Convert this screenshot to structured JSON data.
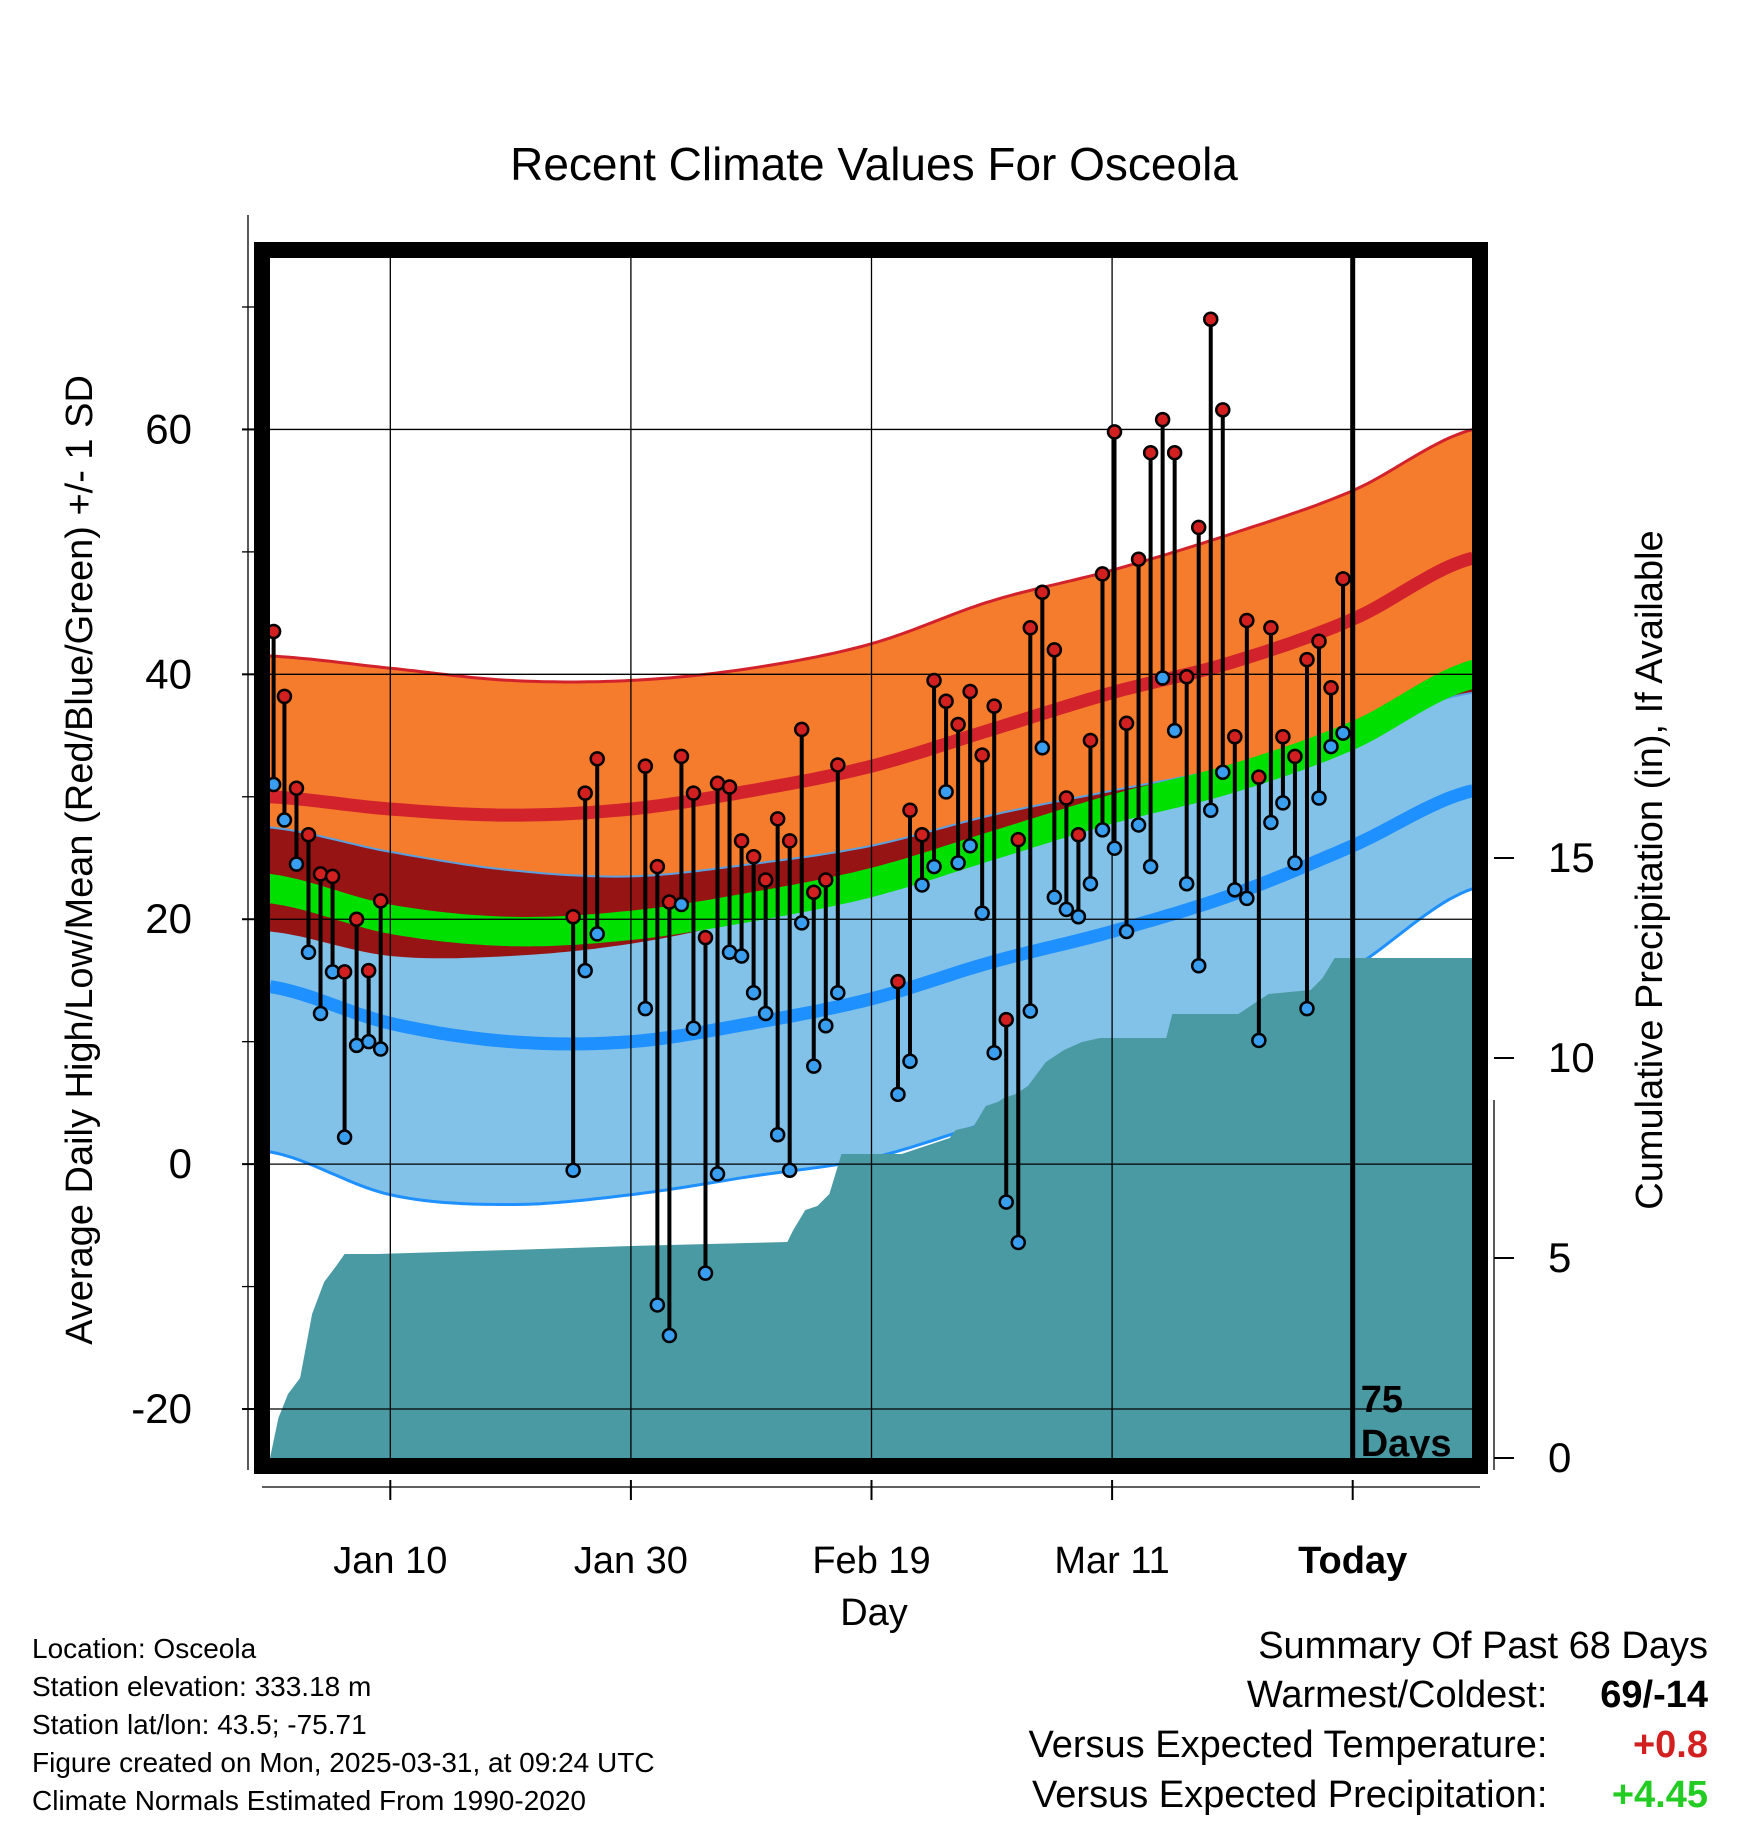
{
  "chart_data": {
    "type": "line",
    "title": "Recent Climate Values For Osceola",
    "xlabel": "Day",
    "ylabel_left": "Average Daily High/Low/Mean (Red/Blue/Green) +/- 1 SD",
    "ylabel_right": "Cumulative Precipitation (in), If Available",
    "x_range": [
      0,
      100
    ],
    "y_range_left": [
      -24,
      74
    ],
    "y_range_right": [
      0,
      30
    ],
    "x_ticks": [
      {
        "day": 10,
        "label": "Jan 10"
      },
      {
        "day": 30,
        "label": "Jan 30"
      },
      {
        "day": 50,
        "label": "Feb 19"
      },
      {
        "day": 70,
        "label": "Mar 11"
      },
      {
        "day": 90,
        "label": "Today"
      }
    ],
    "y_ticks_left": [
      -20,
      0,
      20,
      40,
      60
    ],
    "y_ticks_right": [
      0,
      5,
      10,
      15
    ],
    "today_label": "75\nDays",
    "normals_x": [
      0,
      10,
      20,
      30,
      40,
      50,
      60,
      70,
      80,
      90,
      100
    ],
    "normal_high": [
      30.0,
      29.0,
      28.5,
      29.0,
      30.5,
      32.5,
      35.5,
      38.5,
      41.0,
      44.5,
      49.5
    ],
    "normal_high_sd_upper": [
      41.5,
      40.5,
      39.5,
      39.5,
      40.5,
      42.5,
      46.0,
      48.5,
      51.5,
      55.0,
      60.0
    ],
    "normal_high_sd_lower": [
      19.0,
      17.0,
      17.0,
      18.0,
      20.0,
      22.5,
      25.5,
      28.5,
      31.5,
      35.0,
      39.0
    ],
    "normal_low": [
      14.5,
      11.5,
      10.0,
      10.0,
      11.5,
      13.5,
      16.5,
      19.0,
      22.0,
      26.0,
      30.5
    ],
    "normal_low_sd_upper": [
      27.5,
      25.5,
      24.0,
      23.5,
      24.5,
      26.0,
      28.5,
      30.5,
      32.5,
      35.5,
      38.5
    ],
    "normal_low_sd_lower": [
      1.0,
      -2.5,
      -3.3,
      -2.5,
      -1.0,
      0.5,
      3.5,
      6.5,
      10.5,
      16.0,
      22.5
    ],
    "normal_mean": [
      22.5,
      20.0,
      19.0,
      19.5,
      21.0,
      23.0,
      26.0,
      29.0,
      31.5,
      35.0,
      40.0
    ],
    "daily_x": [
      0.3,
      1.2,
      2.2,
      3.2,
      4.2,
      5.2,
      6.2,
      7.2,
      8.2,
      9.2,
      25.2,
      26.2,
      27.2,
      31.2,
      32.2,
      33.2,
      34.2,
      35.2,
      36.2,
      37.2,
      38.2,
      39.2,
      40.2,
      41.2,
      42.2,
      43.2,
      44.2,
      45.2,
      46.2,
      47.2,
      52.2,
      53.2,
      54.2,
      55.2,
      56.2,
      57.2,
      58.2,
      59.2,
      60.2,
      61.2,
      62.2,
      63.2,
      64.2,
      65.2,
      66.2,
      67.2,
      68.2,
      69.2,
      70.2,
      71.2,
      72.2,
      73.2,
      74.2,
      75.2,
      76.2,
      77.2,
      78.2,
      79.2,
      80.2,
      81.2,
      82.2,
      83.2,
      84.2,
      85.2,
      86.2,
      87.2,
      88.2,
      89.2
    ],
    "daily_high": [
      43.5,
      38.2,
      30.7,
      26.9,
      23.7,
      23.5,
      15.7,
      20.0,
      15.8,
      21.5,
      20.2,
      30.3,
      33.1,
      32.5,
      24.3,
      21.4,
      33.3,
      30.3,
      18.5,
      31.1,
      30.8,
      26.4,
      25.1,
      23.2,
      28.2,
      26.4,
      35.5,
      22.2,
      23.2,
      32.6,
      14.9,
      28.9,
      26.9,
      39.5,
      37.8,
      35.9,
      38.6,
      33.4,
      37.4,
      11.8,
      26.5,
      43.8,
      46.7,
      42.0,
      29.9,
      26.9,
      34.6,
      48.2,
      59.8,
      36.0,
      49.4,
      58.1,
      60.8,
      58.1,
      39.8,
      52.0,
      69.0,
      61.6,
      34.9,
      44.4,
      31.6,
      43.8,
      34.9,
      33.3,
      41.2,
      42.7,
      38.9,
      47.8
    ],
    "daily_low": [
      31.0,
      28.1,
      24.5,
      17.3,
      12.3,
      15.7,
      2.2,
      9.7,
      10.0,
      9.4,
      -0.5,
      15.8,
      18.8,
      12.7,
      -11.5,
      -14.0,
      21.2,
      11.1,
      -8.9,
      -0.8,
      17.3,
      17.0,
      14.0,
      12.3,
      2.4,
      -0.5,
      19.7,
      8.0,
      11.3,
      14.0,
      5.7,
      8.4,
      22.8,
      24.3,
      30.4,
      24.6,
      26.0,
      20.5,
      9.1,
      -3.1,
      -6.4,
      12.5,
      34.0,
      21.8,
      20.8,
      20.2,
      22.9,
      27.3,
      25.8,
      19.0,
      27.7,
      24.3,
      39.7,
      35.4,
      22.9,
      16.2,
      28.9,
      32.0,
      22.4,
      21.7,
      10.1,
      27.9,
      29.5,
      24.6,
      12.7,
      29.9,
      34.1,
      35.2
    ],
    "precip_x": [
      0,
      0.7,
      1.5,
      2.5,
      3.5,
      4.5,
      5.5,
      6.2,
      9.0,
      20.0,
      30.0,
      43.0,
      43.5,
      44.5,
      45.5,
      46.5,
      47.5,
      52.5,
      54.5,
      55.5,
      56.5,
      57.0,
      58.5,
      59.5,
      60.5,
      61.0,
      62.0,
      63.0,
      64.5,
      66.0,
      67.5,
      69.0,
      74.5,
      75.0,
      80.5,
      81.5,
      83.0,
      86.5,
      87.5,
      88.5,
      100.0
    ],
    "precip_cum": [
      0.0,
      1.0,
      1.6,
      2.0,
      3.6,
      4.4,
      4.8,
      5.1,
      5.1,
      5.2,
      5.3,
      5.4,
      5.7,
      6.2,
      6.3,
      6.6,
      7.6,
      7.6,
      7.8,
      7.9,
      8.0,
      8.2,
      8.3,
      8.8,
      8.9,
      9.0,
      9.1,
      9.3,
      9.9,
      10.2,
      10.4,
      10.5,
      10.5,
      11.1,
      11.1,
      11.3,
      11.6,
      11.7,
      12.0,
      12.5,
      12.5
    ]
  },
  "colors": {
    "high_band": "#f47c2c",
    "high_line": "#d2222b",
    "low_band": "#82c1e8",
    "low_line": "#1e90ff",
    "overlap_band": "#961414",
    "mean_band": "#00e000",
    "precip": "#4a9aa4",
    "red_marker": "#d22020",
    "blue_marker": "#3a9ef0",
    "positive_temp": "#d22020",
    "positive_precip": "#22cc22"
  },
  "footer": {
    "location": "Location: Osceola",
    "elevation": "Station elevation: 333.18 m",
    "latlon": "Station lat/lon: 43.5; -75.71",
    "created": "Figure created on Mon, 2025-03-31, at 09:24 UTC",
    "normals": "Climate Normals Estimated From 1990-2020"
  },
  "summary": {
    "heading": "Summary Of Past 68 Days",
    "warm_cold_label": "Warmest/Coldest:",
    "warm_cold_value": "69/-14",
    "temp_label": "Versus Expected Temperature:",
    "temp_value": "+0.8",
    "precip_label": "Versus Expected Precipitation:",
    "precip_value": "+4.45"
  }
}
